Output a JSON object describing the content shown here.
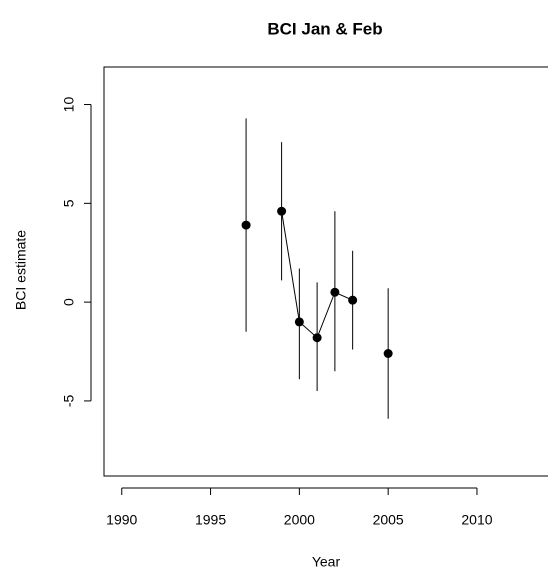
{
  "chart_data": {
    "type": "errorbar",
    "title": "BCI Jan & Feb",
    "x_label": "Year",
    "y_label": "BCI estimate",
    "x": [
      1997,
      1998,
      1999,
      2000,
      2001,
      2002,
      2003,
      2004,
      2005
    ],
    "series": [
      {
        "color": "#000000",
        "values": [
          3.9,
          null,
          4.6,
          -1.0,
          -1.8,
          0.5,
          0.1,
          null,
          -2.6
        ],
        "lower": [
          -1.5,
          null,
          1.1,
          -3.9,
          -4.5,
          -3.5,
          -2.4,
          null,
          -5.9
        ],
        "upper": [
          9.3,
          null,
          8.1,
          1.7,
          1.0,
          4.6,
          2.6,
          null,
          0.7
        ]
      }
    ],
    "xlim": [
      1989,
      2014
    ],
    "ylim": [
      -8.8,
      11.9
    ],
    "xticks": [
      1990,
      1995,
      2000,
      2005,
      2010
    ],
    "yticks": [
      -5,
      0,
      5,
      10
    ]
  }
}
